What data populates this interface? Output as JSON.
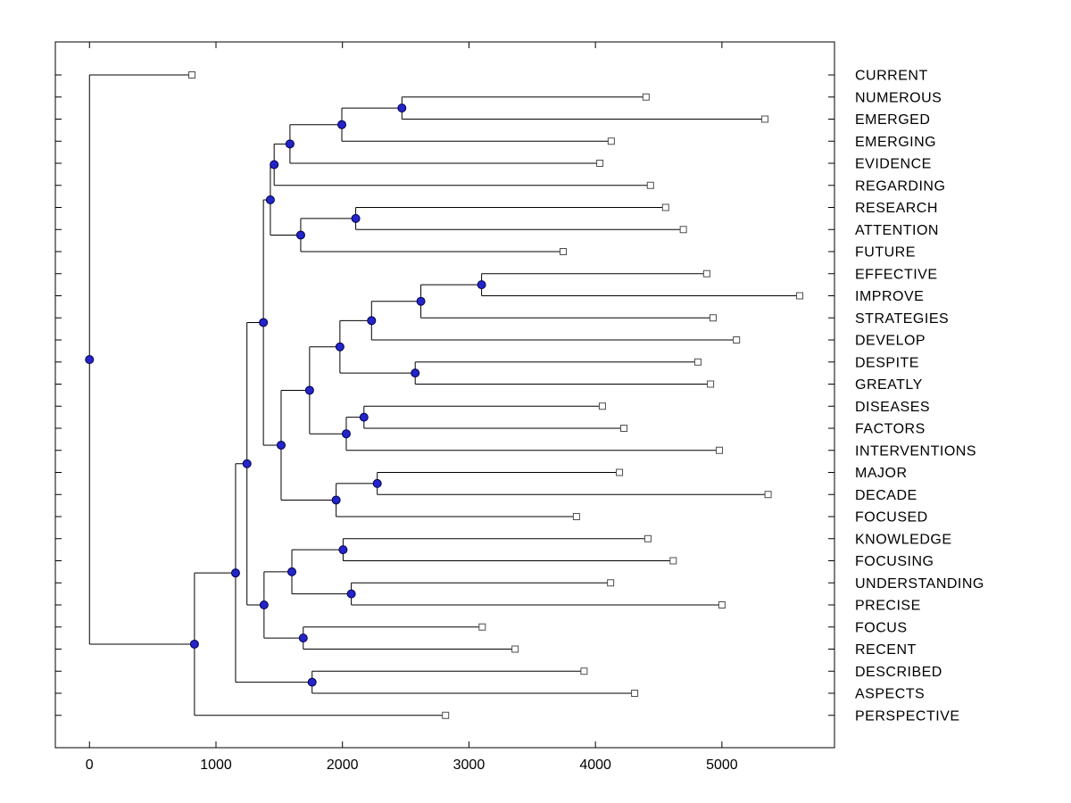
{
  "figure": {
    "background": "#ffffff"
  },
  "chart_data": {
    "type": "dendrogram",
    "orientation": "left-to-right",
    "box": true,
    "grid": false,
    "xlim": [
      -270,
      5890
    ],
    "x_ticks": [
      0,
      1000,
      2000,
      3000,
      4000,
      5000
    ],
    "x_tick_labels": [
      "0",
      "1000",
      "2000",
      "3000",
      "4000",
      "5000"
    ],
    "colors": {
      "branch": "#000000",
      "axis": "#000000",
      "text": "#000000",
      "node_fill": "#2424c8",
      "node_edge": "#00004d",
      "leaf_fill": "#ffffff",
      "leaf_edge": "#4d4d4d"
    },
    "leaf_labels": [
      "CURRENT",
      "NUMEROUS",
      "EMERGED",
      "EMERGING",
      "EVIDENCE",
      "REGARDING",
      "RESEARCH",
      "ATTENTION",
      "FUTURE",
      "EFFECTIVE",
      "IMPROVE",
      "STRATEGIES",
      "DEVELOP",
      "DESPITE",
      "GREATLY",
      "DISEASES",
      "FACTORS",
      "INTERVENTIONS",
      "MAJOR",
      "DECADE",
      "FOCUSED",
      "KNOWLEDGE",
      "FOCUSING",
      "UNDERSTANDING",
      "PRECISE",
      "FOCUS",
      "RECENT",
      "DESCRIBED",
      "ASPECTS",
      "PERSPECTIVE"
    ],
    "tree": {
      "x": 0,
      "children": [
        {
          "label": "CURRENT",
          "x": 810
        },
        {
          "x": 830,
          "children": [
            {
              "x": 1155,
              "children": [
                {
                  "x": 1245,
                  "children": [
                    {
                      "x": 1375,
                      "children": [
                        {
                          "x": 1430,
                          "children": [
                            {
                              "x": 1460,
                              "children": [
                                {
                                  "x": 1585,
                                  "children": [
                                    {
                                      "x": 1995,
                                      "children": [
                                        {
                                          "x": 2470,
                                          "children": [
                                            {
                                              "label": "NUMEROUS",
                                              "x": 4400
                                            },
                                            {
                                              "label": "EMERGED",
                                              "x": 5340
                                            }
                                          ]
                                        },
                                        {
                                          "label": "EMERGING",
                                          "x": 4125
                                        }
                                      ]
                                    },
                                    {
                                      "label": "EVIDENCE",
                                      "x": 4035
                                    }
                                  ]
                                },
                                {
                                  "label": "REGARDING",
                                  "x": 4435
                                }
                              ]
                            },
                            {
                              "x": 1670,
                              "children": [
                                {
                                  "x": 2105,
                                  "children": [
                                    {
                                      "label": "RESEARCH",
                                      "x": 4555
                                    },
                                    {
                                      "label": "ATTENTION",
                                      "x": 4695
                                    }
                                  ]
                                },
                                {
                                  "label": "FUTURE",
                                  "x": 3745
                                }
                              ]
                            }
                          ]
                        },
                        {
                          "x": 1515,
                          "children": [
                            {
                              "x": 1740,
                              "children": [
                                {
                                  "x": 1980,
                                  "children": [
                                    {
                                      "x": 2230,
                                      "children": [
                                        {
                                          "x": 2620,
                                          "children": [
                                            {
                                              "x": 3100,
                                              "children": [
                                                {
                                                  "label": "EFFECTIVE",
                                                  "x": 4880
                                                },
                                                {
                                                  "label": "IMPROVE",
                                                  "x": 5615
                                                }
                                              ]
                                            },
                                            {
                                              "label": "STRATEGIES",
                                              "x": 4930
                                            }
                                          ]
                                        },
                                        {
                                          "label": "DEVELOP",
                                          "x": 5115
                                        }
                                      ]
                                    },
                                    {
                                      "x": 2575,
                                      "children": [
                                        {
                                          "label": "DESPITE",
                                          "x": 4810
                                        },
                                        {
                                          "label": "GREATLY",
                                          "x": 4910
                                        }
                                      ]
                                    }
                                  ]
                                },
                                {
                                  "x": 2030,
                                  "children": [
                                    {
                                      "x": 2170,
                                      "children": [
                                        {
                                          "label": "DISEASES",
                                          "x": 4055
                                        },
                                        {
                                          "label": "FACTORS",
                                          "x": 4225
                                        }
                                      ]
                                    },
                                    {
                                      "label": "INTERVENTIONS",
                                      "x": 4980
                                    }
                                  ]
                                }
                              ]
                            },
                            {
                              "x": 1950,
                              "children": [
                                {
                                  "x": 2275,
                                  "children": [
                                    {
                                      "label": "MAJOR",
                                      "x": 4190
                                    },
                                    {
                                      "label": "DECADE",
                                      "x": 5365
                                    }
                                  ]
                                },
                                {
                                  "label": "FOCUSED",
                                  "x": 3850
                                }
                              ]
                            }
                          ]
                        }
                      ]
                    },
                    {
                      "x": 1380,
                      "children": [
                        {
                          "x": 1600,
                          "children": [
                            {
                              "x": 2005,
                              "children": [
                                {
                                  "label": "KNOWLEDGE",
                                  "x": 4415
                                },
                                {
                                  "label": "FOCUSING",
                                  "x": 4615
                                }
                              ]
                            },
                            {
                              "x": 2070,
                              "children": [
                                {
                                  "label": "UNDERSTANDING",
                                  "x": 4120
                                },
                                {
                                  "label": "PRECISE",
                                  "x": 5000
                                }
                              ]
                            }
                          ]
                        },
                        {
                          "x": 1690,
                          "children": [
                            {
                              "label": "FOCUS",
                              "x": 3105
                            },
                            {
                              "label": "RECENT",
                              "x": 3365
                            }
                          ]
                        }
                      ]
                    }
                  ]
                },
                {
                  "x": 1760,
                  "children": [
                    {
                      "label": "DESCRIBED",
                      "x": 3910
                    },
                    {
                      "label": "ASPECTS",
                      "x": 4310
                    }
                  ]
                }
              ]
            },
            {
              "label": "PERSPECTIVE",
              "x": 2815
            }
          ]
        }
      ]
    }
  }
}
